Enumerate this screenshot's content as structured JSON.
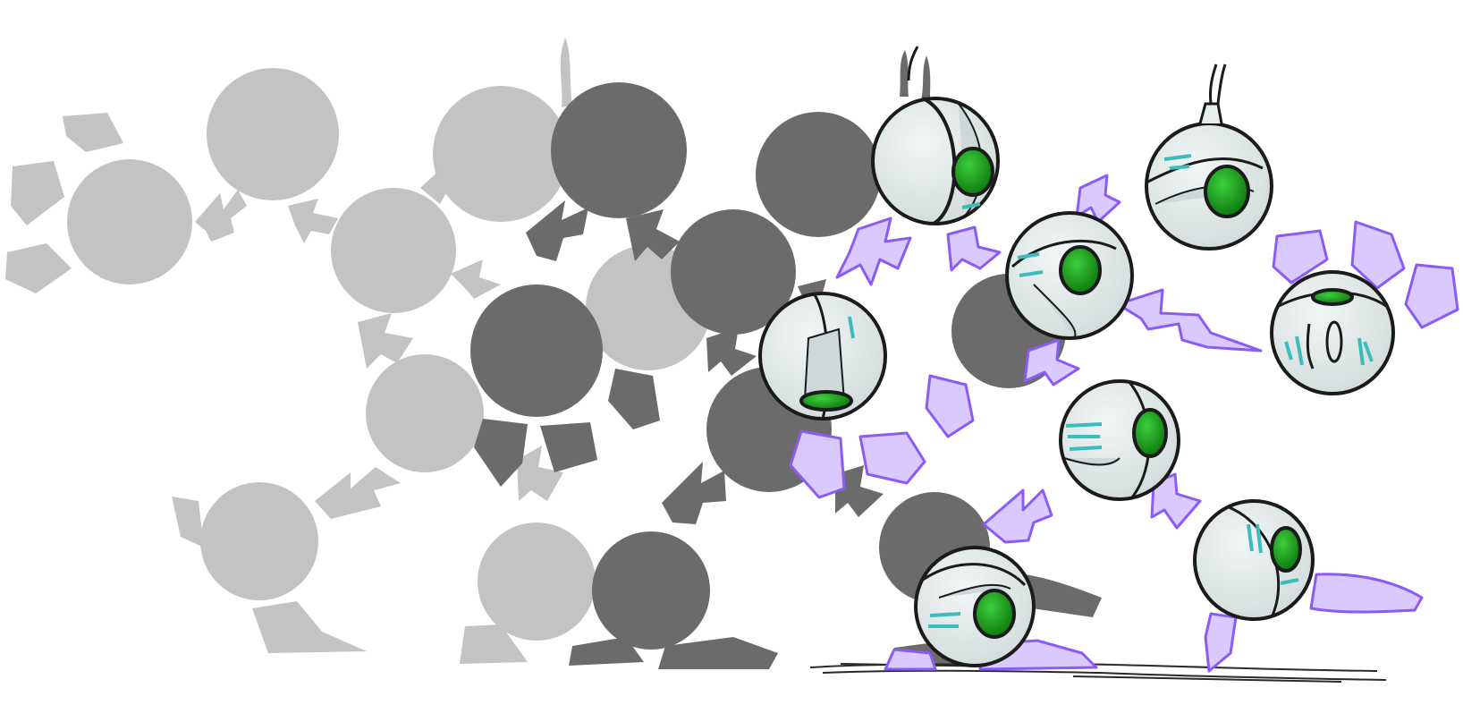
{
  "scene": {
    "description_hidden": "",
    "colors": {
      "ghost_light": "#c3c3c3",
      "ghost_dark": "#6b6b6b",
      "shadow": "#5a5a5a",
      "robot_shell": "#e6eded",
      "robot_shell_shade": "#cfd8d8",
      "outline": "#1b1b1b",
      "eye": "#1a9e1a",
      "eye_dark": "#0d6a0d",
      "accent_teal": "#3dbcbc",
      "electric_fill": "#d9c9ff",
      "electric_stroke": "#8a5cf5",
      "ground": "#2a2a2a"
    },
    "icons": [
      "robot-orb-icon",
      "lightning-bolt-icon",
      "limb-fragment-icon"
    ]
  }
}
